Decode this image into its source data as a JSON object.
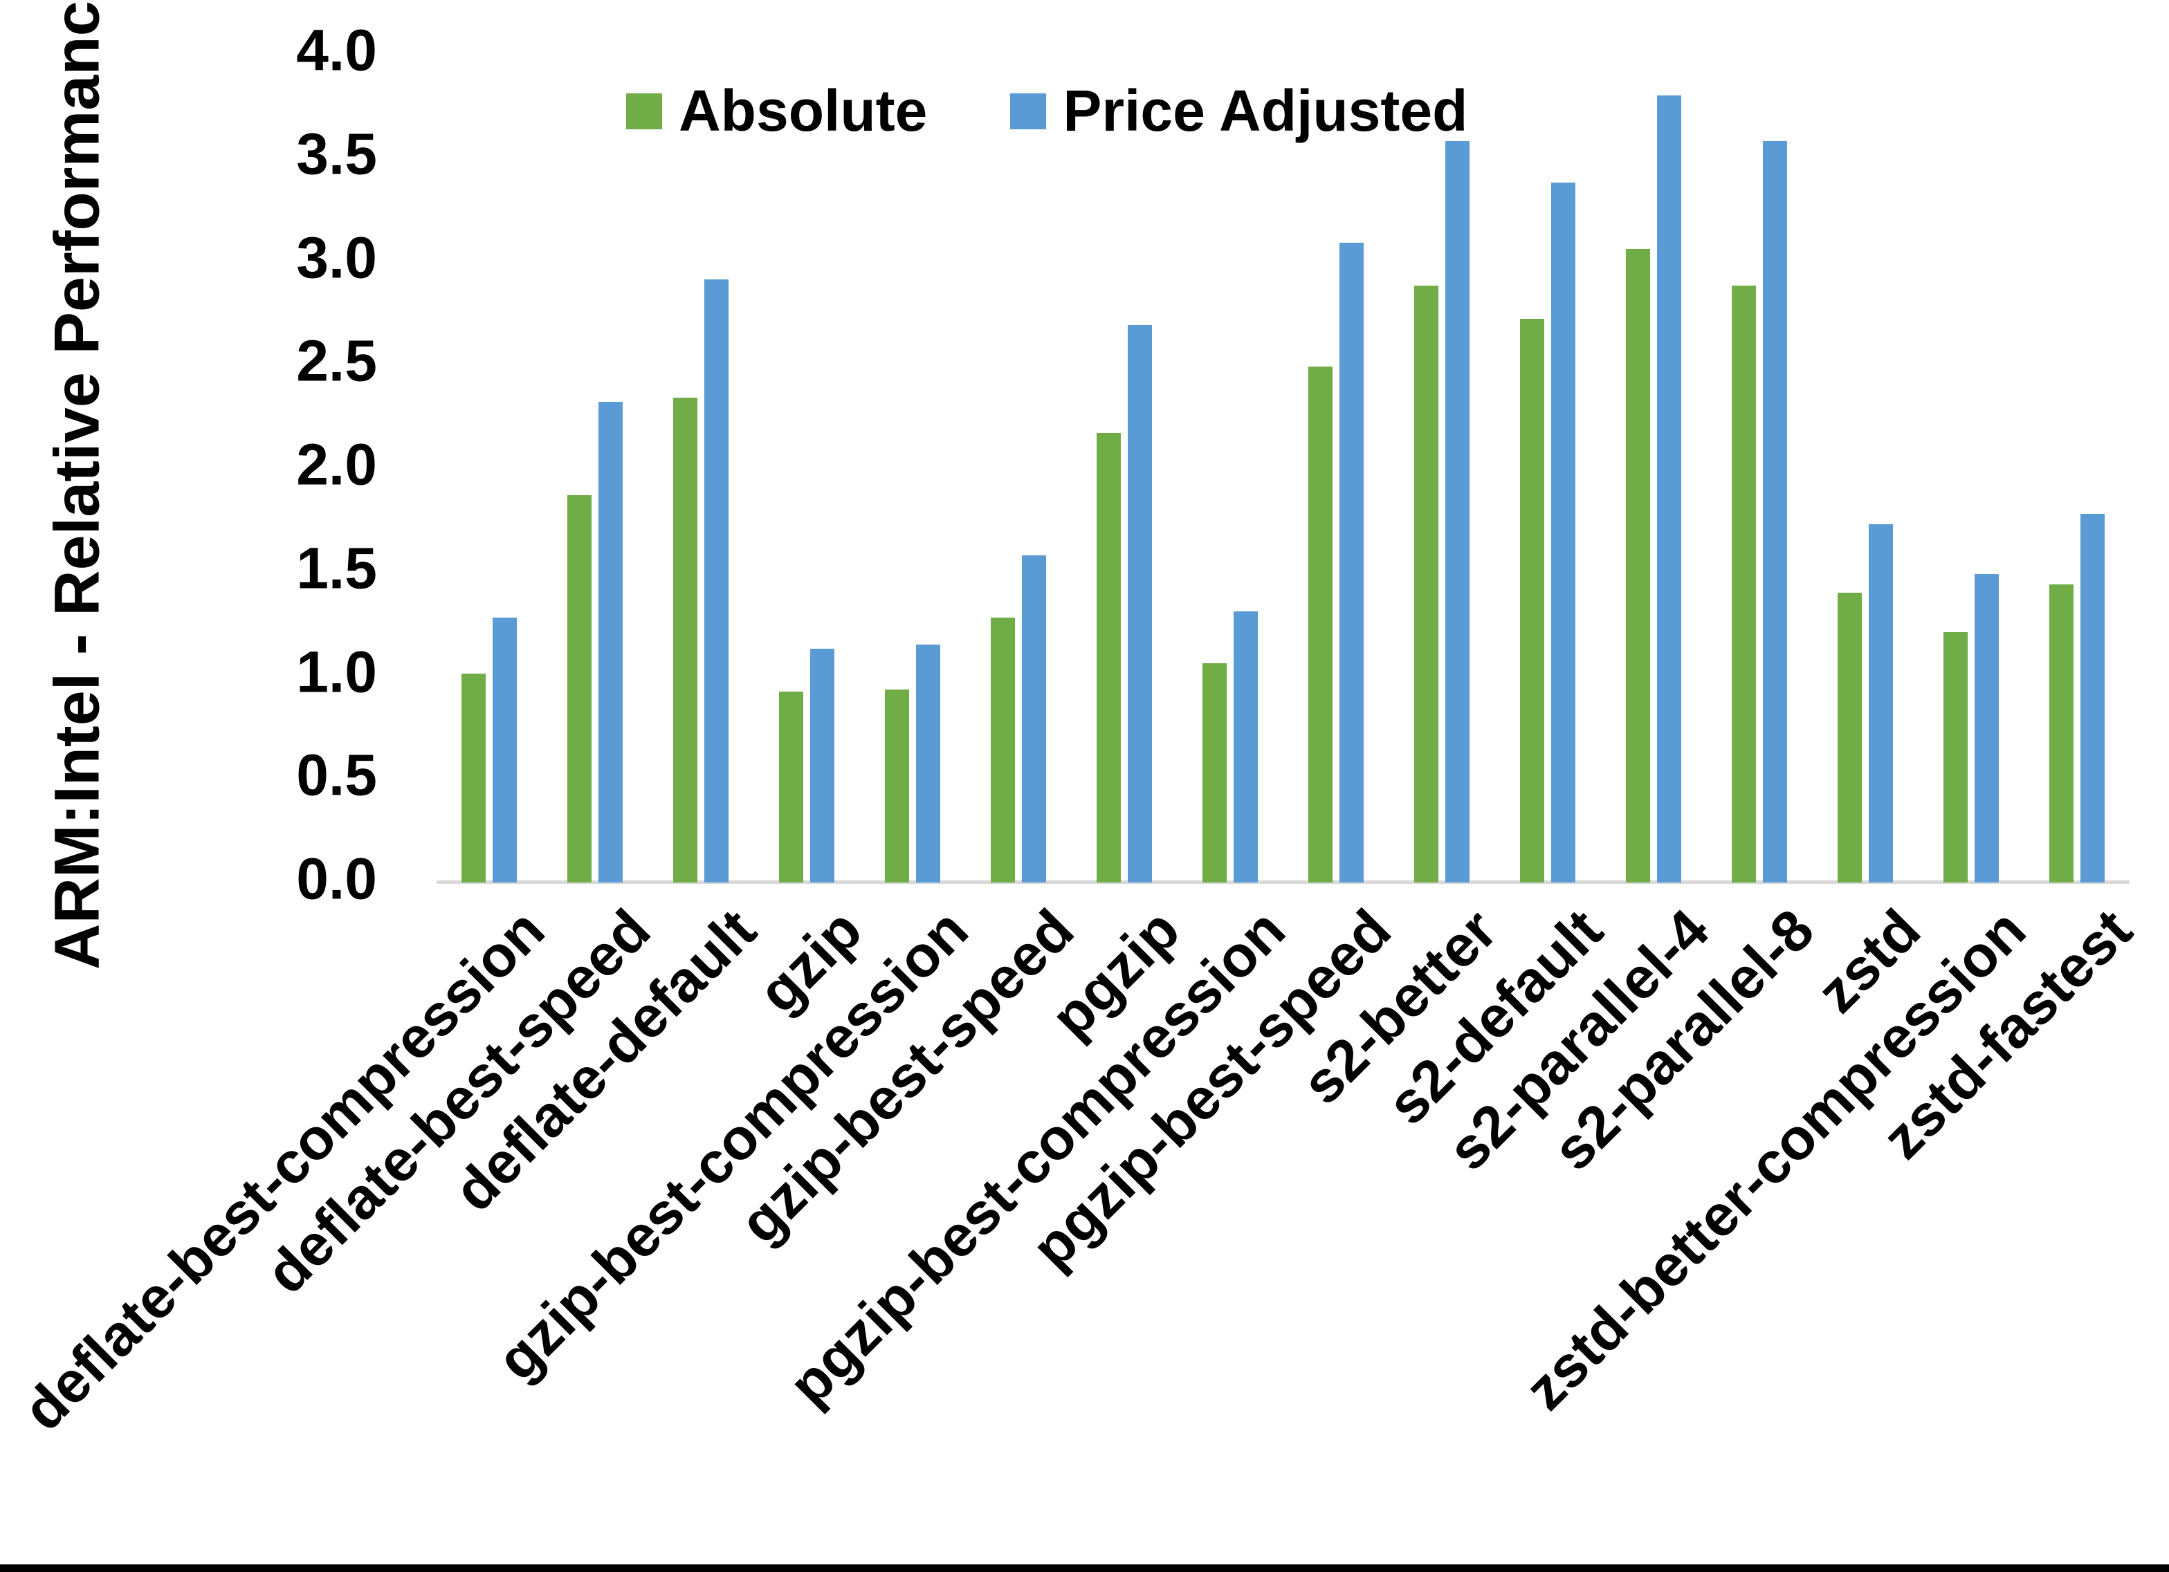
{
  "page": {
    "background": "#ffffff",
    "bottom_border_color": "#000000"
  },
  "chart_data": {
    "type": "bar",
    "title": "",
    "xlabel": "",
    "ylabel": "ARM:Intel - Relative Performance",
    "ylim": [
      0,
      4
    ],
    "ytick_step": 0.5,
    "yticks": [
      "0.0",
      "0.5",
      "1.0",
      "1.5",
      "2.0",
      "2.5",
      "3.0",
      "3.5",
      "4.0"
    ],
    "grid": false,
    "legend_position": "top-center",
    "axis_line_color": "#d9d9d9",
    "text_color": "#000000",
    "categories": [
      "deflate-best-compression",
      "deflate-best-speed",
      "deflate-default",
      "gzip",
      "gzip-best-compression",
      "gzip-best-speed",
      "pgzip",
      "pgzip-best-compression",
      "pgzip-best-speed",
      "s2-better",
      "s2-default",
      "s2-parallel-4",
      "s2-parallel-8",
      "zstd",
      "zstd-better-compression",
      "zstd-fastest"
    ],
    "series": [
      {
        "name": "Absolute",
        "color": "#70AD47",
        "values": [
          1.01,
          1.87,
          2.34,
          0.92,
          0.93,
          1.28,
          2.17,
          1.06,
          2.49,
          2.88,
          2.72,
          3.06,
          2.88,
          1.4,
          1.21,
          1.44
        ]
      },
      {
        "name": "Price Adjusted",
        "color": "#5B9BD5",
        "values": [
          1.28,
          2.32,
          2.91,
          1.13,
          1.15,
          1.58,
          2.69,
          1.31,
          3.09,
          3.58,
          3.38,
          3.8,
          3.58,
          1.73,
          1.49,
          1.78
        ]
      }
    ]
  }
}
